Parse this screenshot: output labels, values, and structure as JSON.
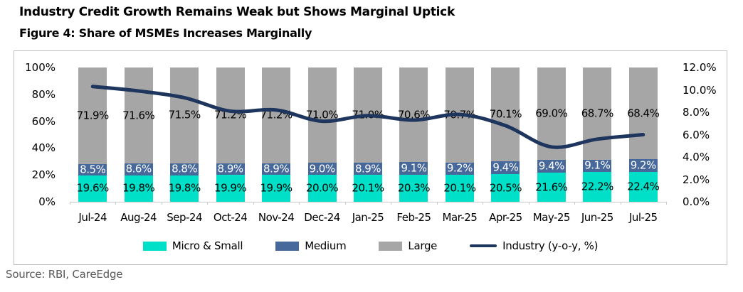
{
  "header": {
    "title": "Industry Credit Growth Remains Weak but Shows Marginal Uptick",
    "subtitle": "Figure 4: Share of MSMEs Increases Marginally"
  },
  "source": "Source: RBI, CareEdge",
  "colors": {
    "micro_small": "#00e0c8",
    "medium": "#47689a",
    "large": "#a6a6a6",
    "industry_line": "#1e355e",
    "axis_text": "#000000",
    "source_text": "#595959",
    "box_border": "#bfbfbf"
  },
  "chart_data": {
    "type": "bar",
    "subtype": "stacked-percent-with-line-overlay",
    "categories": [
      "Jul-24",
      "Aug-24",
      "Sep-24",
      "Oct-24",
      "Nov-24",
      "Dec-24",
      "Jan-25",
      "Feb-25",
      "Mar-25",
      "Apr-25",
      "May-25",
      "Jun-25",
      "Jul-25"
    ],
    "series": [
      {
        "name": "Micro & Small",
        "color_key": "micro_small",
        "label_color": "#000000",
        "values": [
          19.6,
          19.8,
          19.8,
          19.9,
          19.9,
          20.0,
          20.1,
          20.3,
          20.1,
          20.5,
          21.6,
          22.2,
          22.4
        ]
      },
      {
        "name": "Medium",
        "color_key": "medium",
        "label_color": "#ffffff",
        "values": [
          8.5,
          8.6,
          8.8,
          8.9,
          8.9,
          9.0,
          8.9,
          9.1,
          9.2,
          9.4,
          9.4,
          9.1,
          9.2
        ]
      },
      {
        "name": "Large",
        "color_key": "large",
        "label_color": "#000000",
        "values": [
          71.9,
          71.6,
          71.5,
          71.2,
          71.2,
          71.0,
          71.0,
          70.6,
          70.7,
          70.1,
          69.0,
          68.7,
          68.4
        ]
      }
    ],
    "line_series": {
      "name": "Industry (y-o-y, %)",
      "axis": "right",
      "color_key": "industry_line",
      "values": [
        10.3,
        9.9,
        9.3,
        8.1,
        8.2,
        7.2,
        7.7,
        7.3,
        7.8,
        6.8,
        4.9,
        5.6,
        6.0
      ]
    },
    "left_axis": {
      "min": 0,
      "max": 100,
      "ticks": [
        "0%",
        "20%",
        "40%",
        "60%",
        "80%",
        "100%"
      ]
    },
    "right_axis": {
      "min": 0,
      "max": 12,
      "ticks": [
        "0.0%",
        "2.0%",
        "4.0%",
        "6.0%",
        "8.0%",
        "10.0%",
        "12.0%"
      ]
    },
    "legend": [
      {
        "label": "Micro & Small",
        "swatch": "box",
        "color_key": "micro_small"
      },
      {
        "label": "Medium",
        "swatch": "box",
        "color_key": "medium"
      },
      {
        "label": "Large",
        "swatch": "box",
        "color_key": "large"
      },
      {
        "label": "Industry (y-o-y, %)",
        "swatch": "line",
        "color_key": "industry_line"
      }
    ],
    "grid": false,
    "legend_position": "bottom-center",
    "data_label_format": "0.0%"
  }
}
